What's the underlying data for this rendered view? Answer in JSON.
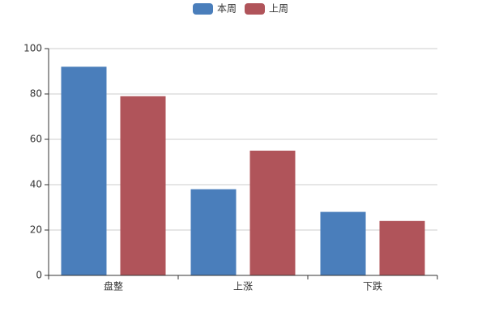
{
  "chart_data": {
    "type": "bar",
    "categories": [
      "盘整",
      "上涨",
      "下跌"
    ],
    "series": [
      {
        "name": "本周",
        "color": "#4a7ebb",
        "values": [
          92,
          38,
          28
        ]
      },
      {
        "name": "上周",
        "color": "#b0545a",
        "values": [
          79,
          55,
          24
        ]
      }
    ],
    "ylim": [
      0,
      100
    ],
    "yticks": [
      0,
      20,
      40,
      60,
      80,
      100
    ],
    "grid": true,
    "legend": "top"
  }
}
